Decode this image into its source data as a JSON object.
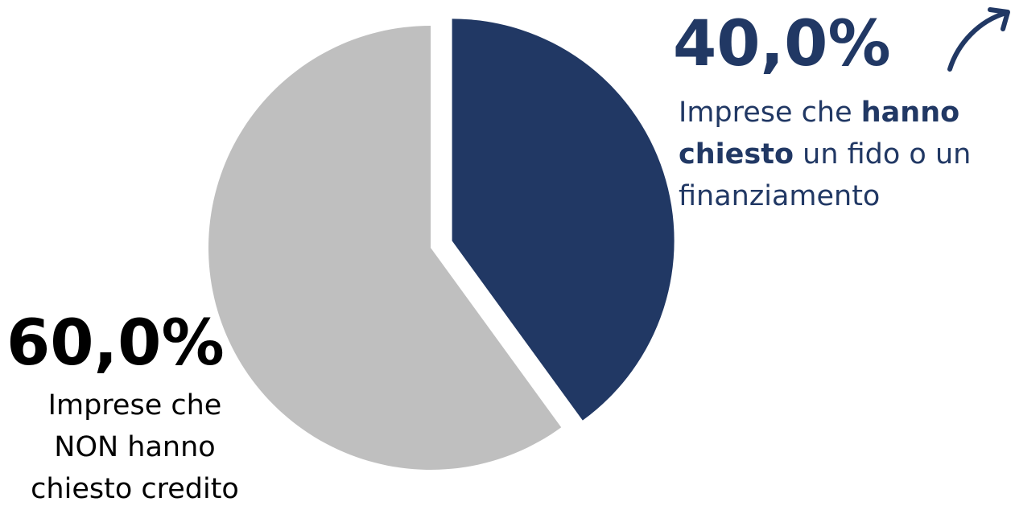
{
  "chart_data": {
    "type": "pie",
    "slices": [
      {
        "label": "Imprese che hanno chiesto un fido o un finanziamento",
        "value": 40.0,
        "display": "40,0%",
        "color": "#213864",
        "exploded": true
      },
      {
        "label": "Imprese che NON hanno chiesto credito",
        "value": 60.0,
        "display": "60,0%",
        "color": "#bfbfbf",
        "exploded": false
      }
    ],
    "annotations": {
      "right": {
        "value_text": "40,0%",
        "lines": [
          {
            "parts": [
              {
                "text": "Imprese che ",
                "bold": false
              },
              {
                "text": "hanno",
                "bold": true
              }
            ]
          },
          {
            "parts": [
              {
                "text": "chiesto",
                "bold": true
              },
              {
                "text": " un fido o un",
                "bold": false
              }
            ]
          },
          {
            "parts": [
              {
                "text": "finanziamento",
                "bold": false
              }
            ]
          }
        ]
      },
      "left": {
        "value_text": "60,0%",
        "lines": [
          "Imprese che",
          "NON hanno",
          "chiesto credito"
        ]
      }
    }
  },
  "colors": {
    "accent": "#213864",
    "gray": "#bfbfbf",
    "text": "#000000"
  },
  "icons": {
    "arrow": "trend-up-arrow-icon"
  }
}
